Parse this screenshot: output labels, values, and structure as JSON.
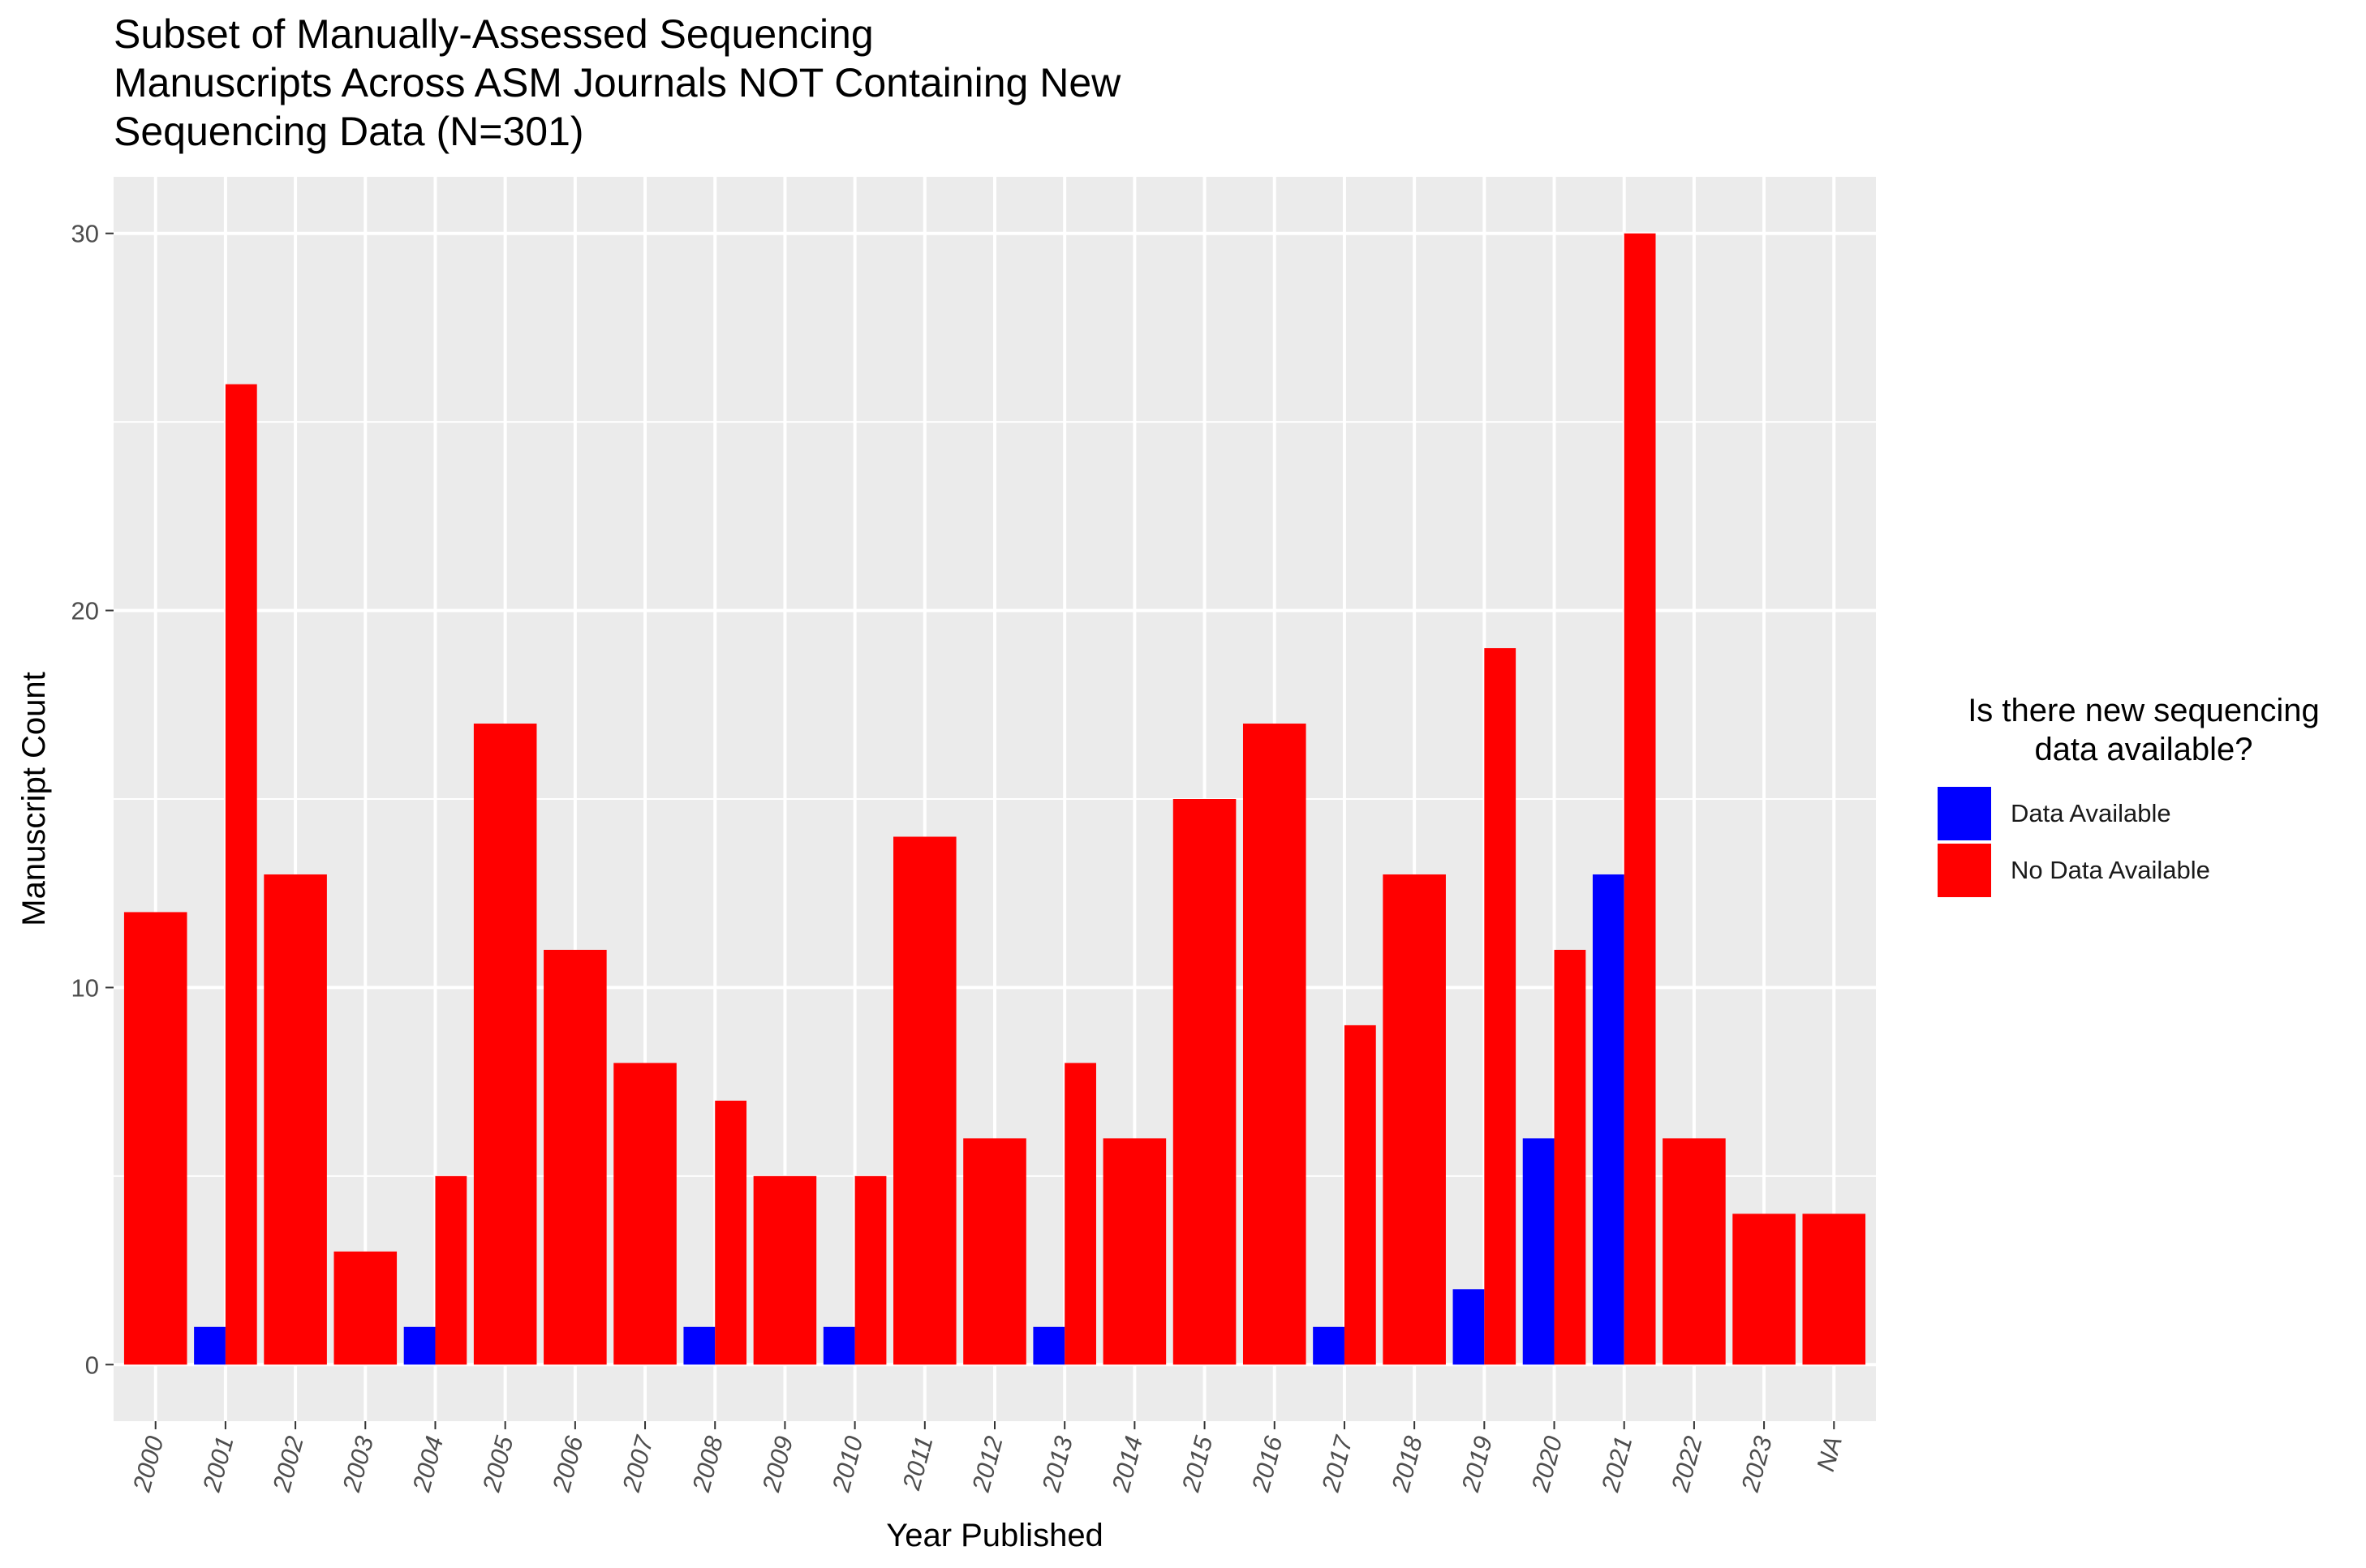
{
  "chart_data": {
    "type": "bar",
    "title": "Subset of Manually-Assessed Sequencing\nManuscripts Across ASM Journals NOT Containing New\nSequencing Data (N=301)",
    "xlabel": "Year Published",
    "ylabel": "Manuscript Count",
    "ylim": [
      -1.5,
      31.5
    ],
    "yticks": [
      0,
      10,
      20,
      30
    ],
    "grid": true,
    "categories": [
      "2000",
      "2001",
      "2002",
      "2003",
      "2004",
      "2005",
      "2006",
      "2007",
      "2008",
      "2009",
      "2010",
      "2011",
      "2012",
      "2013",
      "2014",
      "2015",
      "2016",
      "2017",
      "2018",
      "2019",
      "2020",
      "2021",
      "2022",
      "2023",
      "NA"
    ],
    "series": [
      {
        "name": "Data Available",
        "color": "#0000ff",
        "values": [
          0,
          1,
          0,
          0,
          1,
          0,
          0,
          0,
          1,
          0,
          1,
          0,
          0,
          1,
          0,
          0,
          0,
          1,
          0,
          2,
          6,
          13,
          0,
          0,
          0
        ]
      },
      {
        "name": "No Data Available",
        "color": "#ff0000",
        "values": [
          12,
          26,
          13,
          3,
          5,
          17,
          11,
          8,
          7,
          5,
          5,
          14,
          6,
          8,
          6,
          15,
          17,
          9,
          13,
          19,
          11,
          30,
          6,
          4,
          4
        ]
      }
    ],
    "legend": {
      "title": "Is there new sequencing\ndata available?",
      "position": "right"
    }
  }
}
